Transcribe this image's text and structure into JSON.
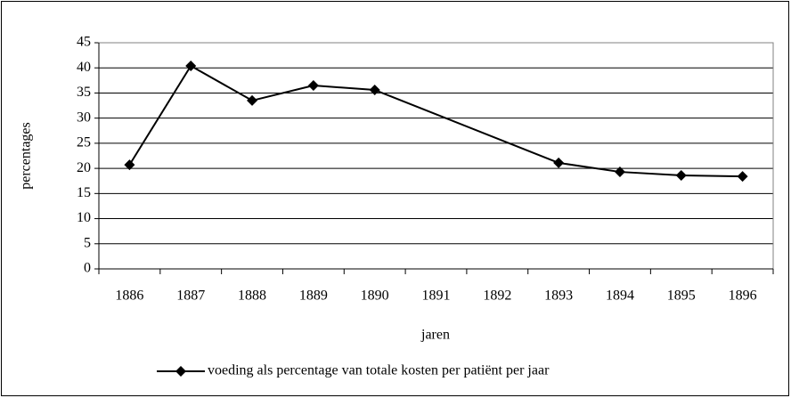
{
  "chart_data": {
    "type": "line",
    "x_label": "jaren",
    "y_label": "percentages",
    "categories": [
      "1886",
      "1887",
      "1888",
      "1889",
      "1890",
      "1891",
      "1892",
      "1893",
      "1894",
      "1895",
      "1896"
    ],
    "series": [
      {
        "name": "voeding als percentage van totale kosten per patiënt per jaar",
        "color": "#000000",
        "values": [
          20.7,
          40.4,
          33.5,
          36.5,
          35.6,
          null,
          null,
          21.1,
          19.3,
          18.6,
          18.4
        ]
      }
    ],
    "ylim": [
      0,
      45
    ],
    "yticks": [
      0,
      5,
      10,
      15,
      20,
      25,
      30,
      35,
      40,
      45
    ],
    "grid": true,
    "legend": "bottom"
  }
}
